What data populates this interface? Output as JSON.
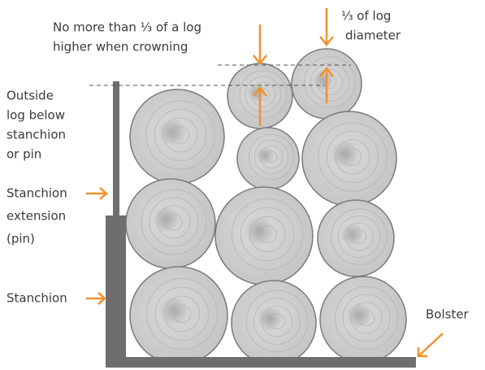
{
  "labels": {
    "crowning": [
      "No more than ⅓ of a log",
      "higher when crowning"
    ],
    "diameter": [
      "⅓ of log",
      "diameter"
    ],
    "outside": [
      "Outside",
      "log below",
      "stanchion",
      "or pin"
    ],
    "extension": [
      "Stanchion",
      "extension",
      "(pin)"
    ],
    "stanchion": "Stanchion",
    "bolster": "Bolster"
  }
}
